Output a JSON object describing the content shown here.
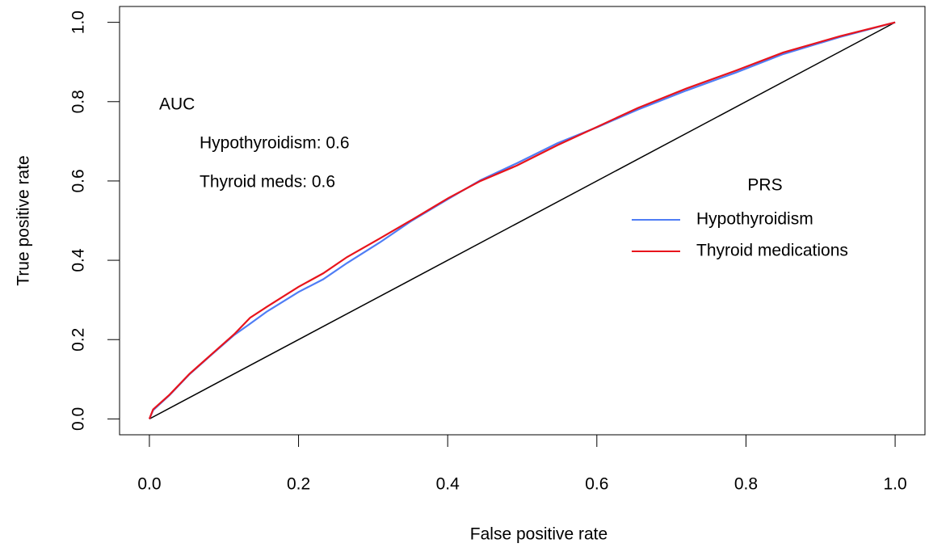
{
  "chart_data": {
    "type": "line",
    "xlabel": "False positive rate",
    "ylabel": "True positive rate",
    "xlim": [
      -0.04,
      1.04
    ],
    "ylim": [
      -0.04,
      1.04
    ],
    "xticks": [
      {
        "value": 0,
        "label": "0.0"
      },
      0.2,
      0.4,
      0.6,
      0.8,
      {
        "value": 1,
        "label": "1.0"
      }
    ],
    "yticks": [
      {
        "value": 0,
        "label": "0.0"
      },
      0.2,
      0.4,
      0.6,
      0.8,
      {
        "value": 1,
        "label": "1.0"
      }
    ],
    "annotations": [
      "AUC",
      "Hypothyroidism: 0.6",
      "Thyroid meds: 0.6"
    ],
    "legend_title": "PRS",
    "legend_position": "right",
    "reference_line": {
      "x": [
        0,
        1
      ],
      "y": [
        0,
        1
      ],
      "color": "#000000"
    },
    "x": [
      0,
      0.005,
      0.027,
      0.054,
      0.081,
      0.114,
      0.135,
      0.157,
      0.2,
      0.233,
      0.265,
      0.309,
      0.352,
      0.401,
      0.444,
      0.493,
      0.547,
      0.601,
      0.655,
      0.72,
      0.786,
      0.85,
      0.926,
      1
    ],
    "series": [
      {
        "name": "Hypothyroidism",
        "color": "#4f7df5",
        "values": [
          0,
          0.022,
          0.06,
          0.113,
          0.158,
          0.212,
          0.24,
          0.27,
          0.32,
          0.352,
          0.393,
          0.445,
          0.5,
          0.555,
          0.602,
          0.645,
          0.695,
          0.736,
          0.78,
          0.828,
          0.873,
          0.92,
          0.963,
          1
        ]
      },
      {
        "name": "Thyroid medications",
        "color": "#e8141c",
        "values": [
          0,
          0.024,
          0.061,
          0.114,
          0.159,
          0.214,
          0.255,
          0.282,
          0.333,
          0.367,
          0.408,
          0.455,
          0.502,
          0.557,
          0.6,
          0.639,
          0.69,
          0.737,
          0.784,
          0.833,
          0.878,
          0.924,
          0.965,
          1
        ]
      }
    ]
  }
}
